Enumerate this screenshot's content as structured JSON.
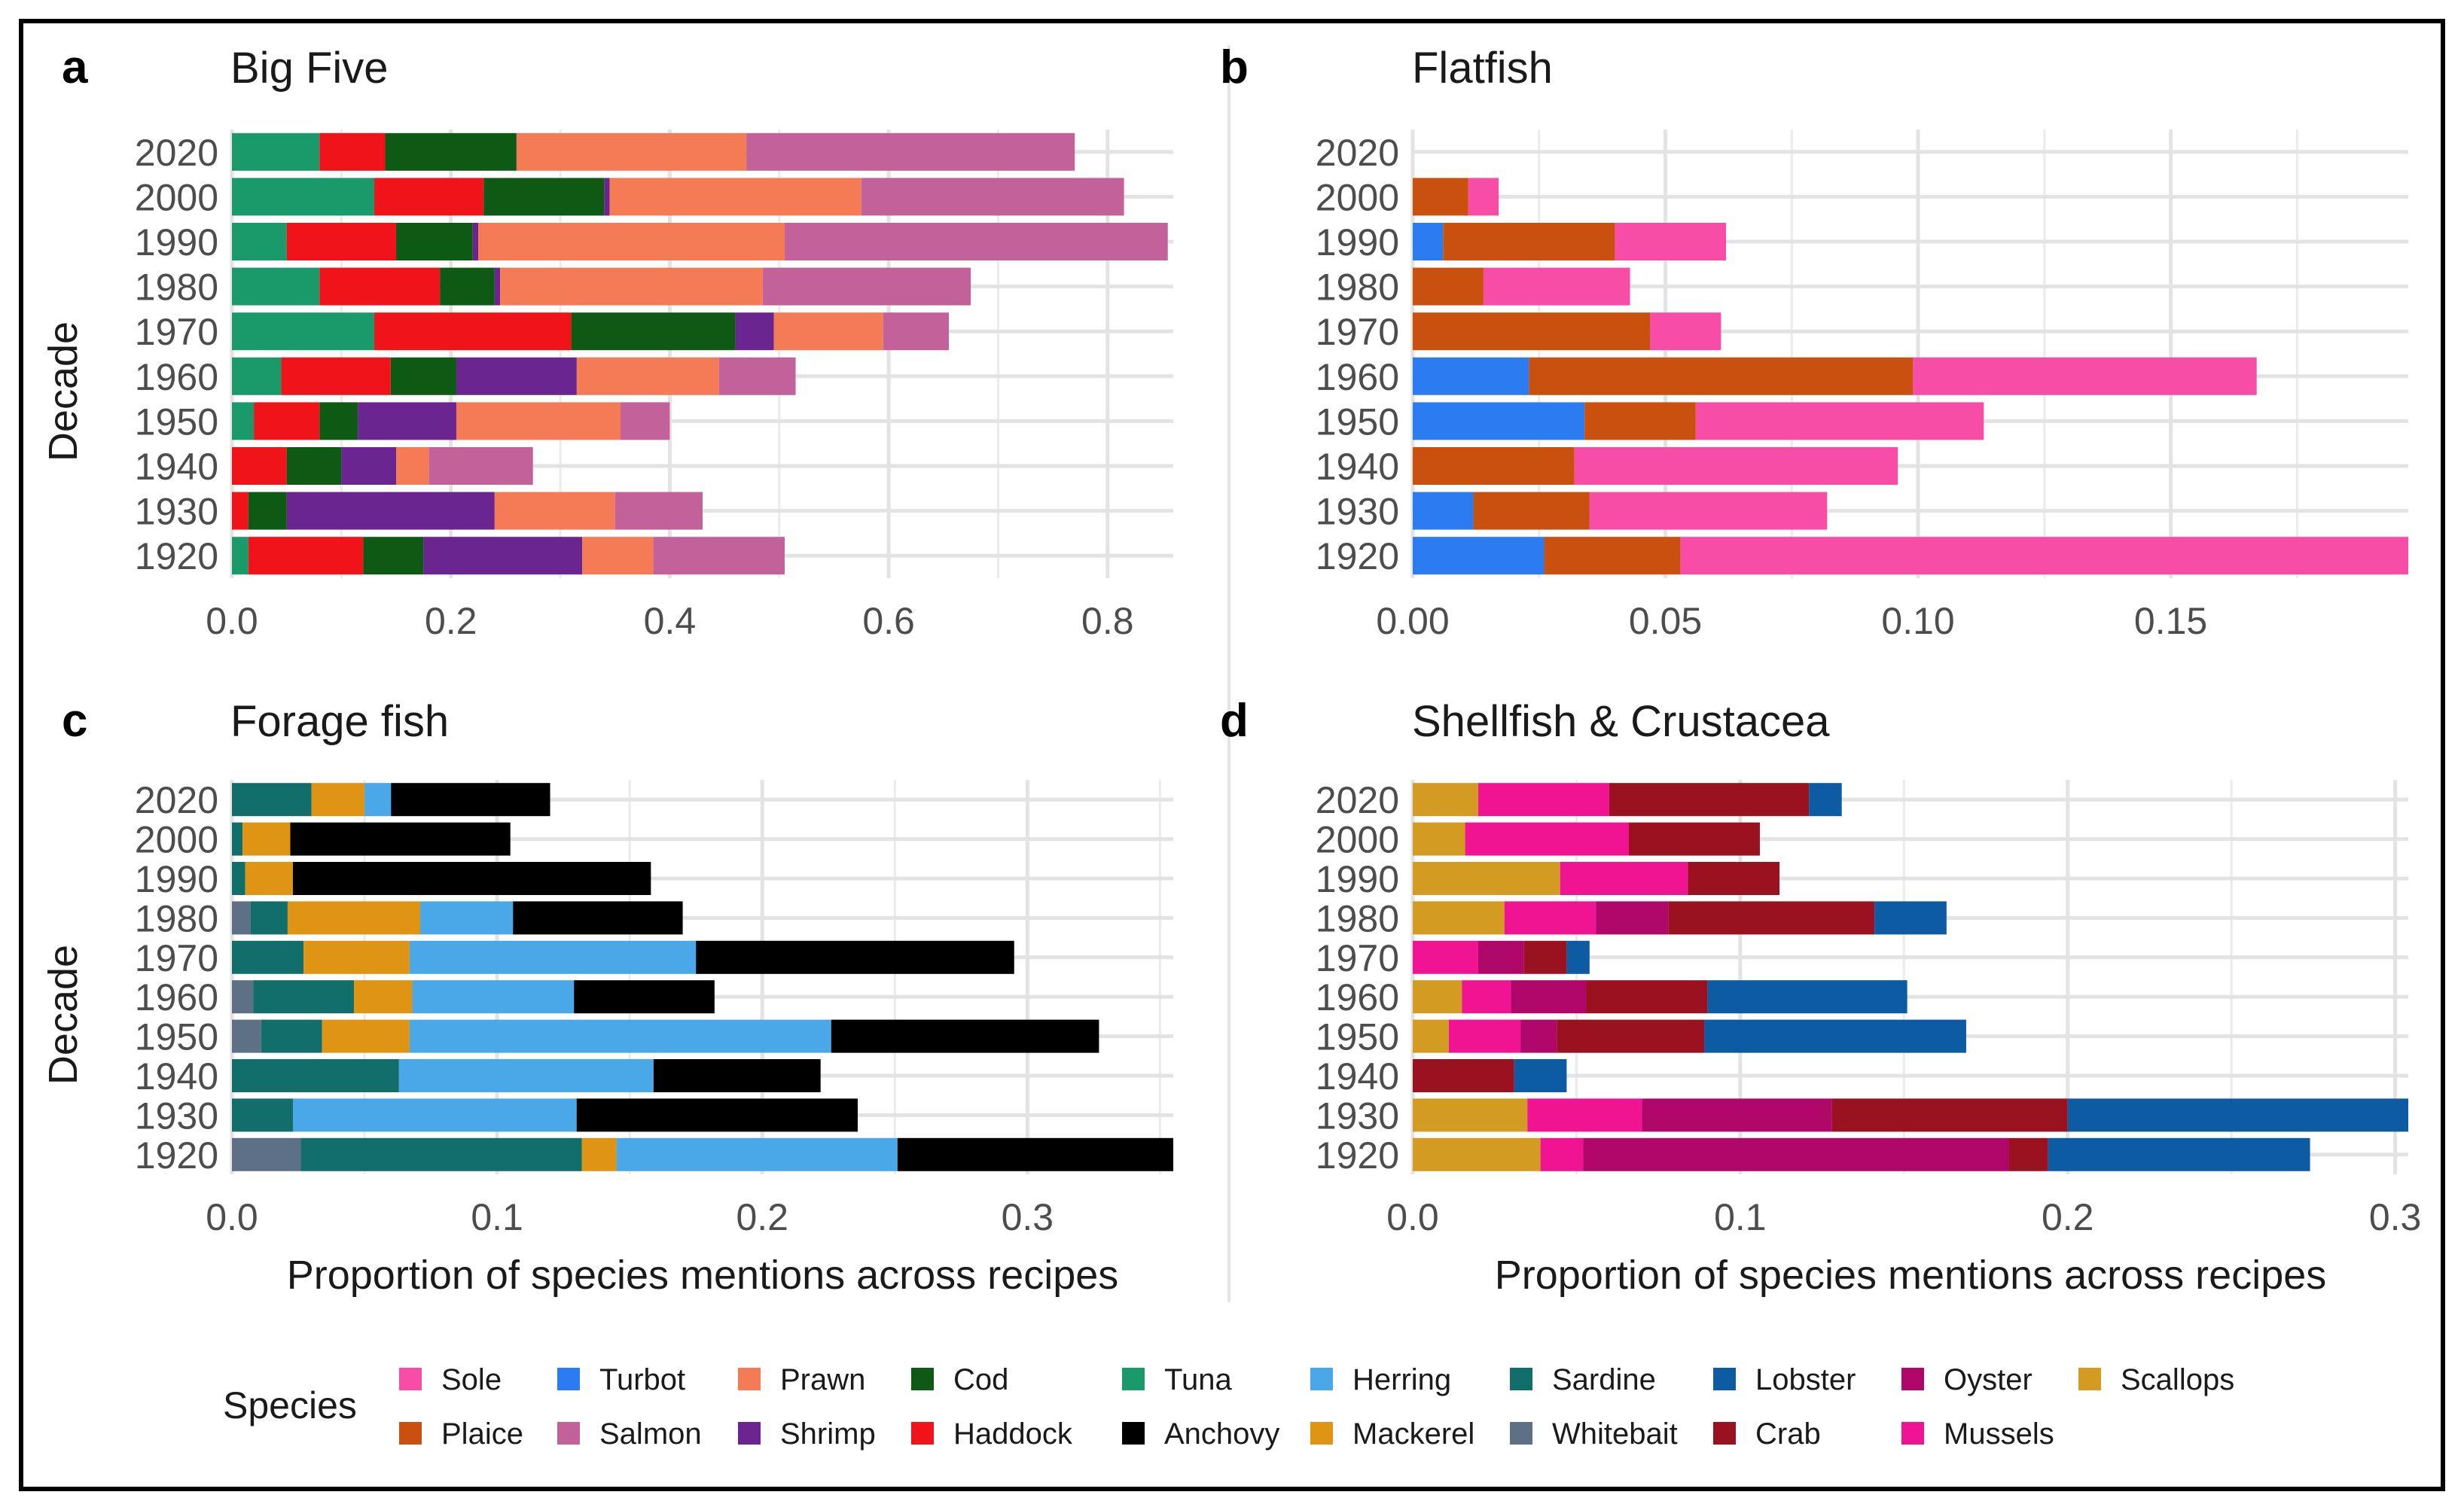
{
  "colors": {
    "Sole": "#f74da6",
    "Plaice": "#c9500e",
    "Turbot": "#2b7cf0",
    "Salmon": "#c2619a",
    "Prawn": "#f47b56",
    "Shrimp": "#6a2590",
    "Cod": "#0e5a14",
    "Haddock": "#f0141a",
    "Tuna": "#1a9a6a",
    "Anchovy": "#000000",
    "Herring": "#4aa8e8",
    "Mackerel": "#e09414",
    "Sardine": "#126e6b",
    "Whitebait": "#5e7085",
    "Lobster": "#0d5ba3",
    "Crab": "#9a1120",
    "Oyster": "#b0086a",
    "Mussels": "#f01493",
    "Scallops": "#d39b22"
  },
  "legend": {
    "title": "Species",
    "row1": [
      "Sole",
      "Turbot",
      "Prawn",
      "Cod",
      "Tuna",
      "Herring",
      "Sardine",
      "Lobster",
      "Oyster",
      "Scallops"
    ],
    "row2": [
      "Plaice",
      "Salmon",
      "Shrimp",
      "Haddock",
      "Anchovy",
      "Mackerel",
      "Whitebait",
      "Crab",
      "Mussels"
    ]
  },
  "labels": {
    "y_title": "Decade",
    "x_title": "Proportion of species mentions across recipes"
  },
  "chart_data": [
    {
      "type": "bar",
      "stacked": true,
      "orientation": "horizontal",
      "panel": "a",
      "title": "Big Five",
      "ylabel": "Decade",
      "xlabel": "",
      "categories": [
        "2020",
        "2000",
        "1990",
        "1980",
        "1970",
        "1960",
        "1950",
        "1940",
        "1930",
        "1920"
      ],
      "xlim": [
        0,
        0.86
      ],
      "xticks": [
        0,
        0.2,
        0.4,
        0.6,
        0.8
      ],
      "xtick_labels": [
        "0.0",
        "0.2",
        "0.4",
        "0.6",
        "0.8"
      ],
      "series": [
        {
          "name": "Tuna",
          "values": [
            0.08,
            0.13,
            0.05,
            0.08,
            0.13,
            0.045,
            0.02,
            0,
            0,
            0.015
          ]
        },
        {
          "name": "Haddock",
          "values": [
            0.06,
            0.1,
            0.1,
            0.11,
            0.18,
            0.1,
            0.06,
            0.05,
            0.015,
            0.105
          ]
        },
        {
          "name": "Cod",
          "values": [
            0.12,
            0.11,
            0.07,
            0.05,
            0.15,
            0.06,
            0.035,
            0.05,
            0.035,
            0.055
          ]
        },
        {
          "name": "Shrimp",
          "values": [
            0,
            0.005,
            0.005,
            0.005,
            0.035,
            0.11,
            0.09,
            0.05,
            0.19,
            0.145
          ]
        },
        {
          "name": "Prawn",
          "values": [
            0.21,
            0.23,
            0.28,
            0.24,
            0.1,
            0.13,
            0.15,
            0.03,
            0.11,
            0.065
          ]
        },
        {
          "name": "Salmon",
          "values": [
            0.3,
            0.24,
            0.35,
            0.19,
            0.06,
            0.07,
            0.045,
            0.095,
            0.08,
            0.12
          ]
        }
      ]
    },
    {
      "type": "bar",
      "stacked": true,
      "orientation": "horizontal",
      "panel": "b",
      "title": "Flatfish",
      "ylabel": "",
      "xlabel": "",
      "categories": [
        "2020",
        "2000",
        "1990",
        "1980",
        "1970",
        "1960",
        "1950",
        "1940",
        "1930",
        "1920"
      ],
      "xlim": [
        0,
        0.197
      ],
      "xticks": [
        0,
        0.05,
        0.1,
        0.15
      ],
      "xtick_labels": [
        "0.00",
        "0.05",
        "0.10",
        "0.15"
      ],
      "series": [
        {
          "name": "Turbot",
          "values": [
            0,
            0,
            0.006,
            0,
            0,
            0.023,
            0.034,
            0,
            0.012,
            0.026
          ]
        },
        {
          "name": "Plaice",
          "values": [
            0,
            0.011,
            0.034,
            0.014,
            0.047,
            0.076,
            0.022,
            0.032,
            0.023,
            0.027
          ]
        },
        {
          "name": "Sole",
          "values": [
            0,
            0.006,
            0.022,
            0.029,
            0.014,
            0.068,
            0.057,
            0.064,
            0.047,
            0.145
          ]
        }
      ]
    },
    {
      "type": "bar",
      "stacked": true,
      "orientation": "horizontal",
      "panel": "c",
      "title": "Forage fish",
      "ylabel": "Decade",
      "xlabel": "Proportion of species mentions across recipes",
      "categories": [
        "2020",
        "2000",
        "1990",
        "1980",
        "1970",
        "1960",
        "1950",
        "1940",
        "1930",
        "1920"
      ],
      "xlim": [
        0,
        0.355
      ],
      "xticks": [
        0,
        0.1,
        0.2,
        0.3
      ],
      "xtick_labels": [
        "0.0",
        "0.1",
        "0.2",
        "0.3"
      ],
      "series": [
        {
          "name": "Whitebait",
          "values": [
            0,
            0,
            0,
            0.007,
            0,
            0.008,
            0.011,
            0,
            0,
            0.026
          ]
        },
        {
          "name": "Sardine",
          "values": [
            0.03,
            0.004,
            0.005,
            0.014,
            0.027,
            0.038,
            0.023,
            0.063,
            0.023,
            0.106
          ]
        },
        {
          "name": "Mackerel",
          "values": [
            0.02,
            0.018,
            0.018,
            0.05,
            0.04,
            0.022,
            0.033,
            0,
            0,
            0.013
          ]
        },
        {
          "name": "Herring",
          "values": [
            0.01,
            0,
            0,
            0.035,
            0.108,
            0.061,
            0.159,
            0.096,
            0.107,
            0.106
          ]
        },
        {
          "name": "Anchovy",
          "values": [
            0.06,
            0.083,
            0.135,
            0.064,
            0.12,
            0.053,
            0.101,
            0.063,
            0.106,
            0.104
          ]
        }
      ]
    },
    {
      "type": "bar",
      "stacked": true,
      "orientation": "horizontal",
      "panel": "d",
      "title": "Shellfish & Crustacea",
      "ylabel": "",
      "xlabel": "Proportion of species mentions across recipes",
      "categories": [
        "2020",
        "2000",
        "1990",
        "1980",
        "1970",
        "1960",
        "1950",
        "1940",
        "1930",
        "1920"
      ],
      "xlim": [
        0,
        0.304
      ],
      "xticks": [
        0,
        0.1,
        0.2,
        0.3
      ],
      "xtick_labels": [
        "0.0",
        "0.1",
        "0.2",
        "0.3"
      ],
      "series": [
        {
          "name": "Scallops",
          "values": [
            0.02,
            0.016,
            0.045,
            0.028,
            0,
            0.015,
            0.011,
            0,
            0.035,
            0.039
          ]
        },
        {
          "name": "Mussels",
          "values": [
            0.04,
            0.05,
            0.039,
            0.028,
            0.02,
            0.015,
            0.022,
            0,
            0.035,
            0.013
          ]
        },
        {
          "name": "Oyster",
          "values": [
            0,
            0,
            0,
            0.022,
            0.014,
            0.023,
            0.011,
            0,
            0.058,
            0.13
          ]
        },
        {
          "name": "Crab",
          "values": [
            0.061,
            0.04,
            0.028,
            0.063,
            0.013,
            0.037,
            0.045,
            0.031,
            0.072,
            0.012
          ]
        },
        {
          "name": "Lobster",
          "values": [
            0.01,
            0,
            0,
            0.022,
            0.007,
            0.061,
            0.08,
            0.016,
            0.105,
            0.08
          ]
        }
      ]
    }
  ]
}
